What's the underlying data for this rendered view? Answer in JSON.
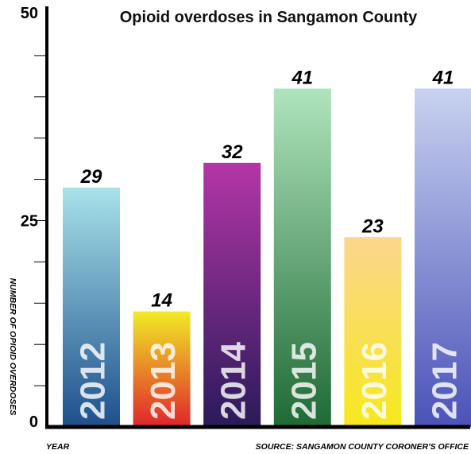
{
  "chart_data": {
    "type": "bar",
    "title": "Opioid overdoses in Sangamon County",
    "ylabel": "NUMBER OF OPIOID OVERDOSES",
    "xlabel": "YEAR",
    "source": "SOURCE: SANGAMON COUNTY CORONER'S OFFICE",
    "ylim": [
      0,
      50
    ],
    "yticks": [
      {
        "value": 50,
        "label": "50"
      },
      {
        "value": 25,
        "label": "25"
      },
      {
        "value": 0,
        "label": "0"
      }
    ],
    "minor_tick_step": 5,
    "grid": false,
    "categories": [
      "2012",
      "2013",
      "2014",
      "2015",
      "2016",
      "2017"
    ],
    "values": [
      29,
      14,
      32,
      41,
      23,
      41
    ],
    "data_labels": [
      "29",
      "14",
      "32",
      "41",
      "23",
      "41"
    ],
    "colors": [
      [
        "#a8e2ea",
        "#1d4f8c"
      ],
      [
        "#f0ec26",
        "#e0242a"
      ],
      [
        "#b336a6",
        "#2a1a5a"
      ],
      [
        "#b0e4bc",
        "#1e6a34"
      ],
      [
        "#fbd68e",
        "#f7e81e"
      ],
      [
        "#c8d2f0",
        "#4a52b8"
      ]
    ]
  }
}
